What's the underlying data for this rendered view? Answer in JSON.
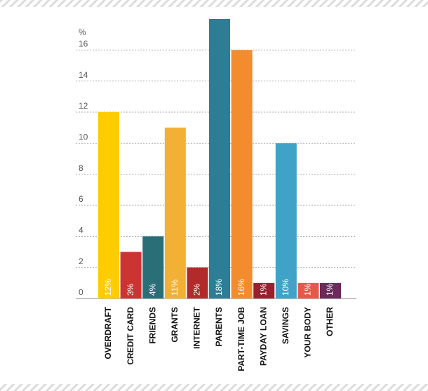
{
  "chart_data": {
    "type": "bar",
    "y_label": "%",
    "categories": [
      "OVERDRAFT",
      "CREDIT CARD",
      "FRIENDS",
      "GRANTS",
      "INTERNET",
      "PARENTS",
      "PART-TIME JOB",
      "PAYDAY LOAN",
      "SAVINGS",
      "YOUR BODY",
      "OTHER"
    ],
    "values": [
      12,
      3,
      4,
      11,
      2,
      18,
      16,
      1,
      10,
      1,
      1
    ],
    "value_labels": [
      "12%",
      "3%",
      "4%",
      "11%",
      "2%",
      "18%",
      "16%",
      "1%",
      "10%",
      "1%",
      "1%"
    ],
    "colors": [
      "#ffcc00",
      "#cc3333",
      "#2a6e78",
      "#f2b134",
      "#b32a2a",
      "#2e7d97",
      "#f28c2e",
      "#9a1f2f",
      "#3fa3c8",
      "#e8584a",
      "#6b2a5a"
    ],
    "ylim": [
      0,
      18
    ],
    "yticks": [
      0,
      2,
      4,
      6,
      8,
      10,
      12,
      14,
      16
    ],
    "grid": true
  }
}
